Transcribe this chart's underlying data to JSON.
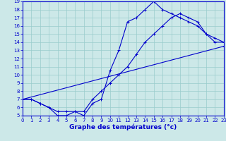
{
  "xlabel": "Graphe des températures (°c)",
  "bg_color": "#cce8e8",
  "grid_color": "#99cccc",
  "line_color": "#0000cc",
  "xlim": [
    0,
    23
  ],
  "ylim": [
    5,
    19
  ],
  "yticks": [
    5,
    6,
    7,
    8,
    9,
    10,
    11,
    12,
    13,
    14,
    15,
    16,
    17,
    18,
    19
  ],
  "xticks": [
    0,
    1,
    2,
    3,
    4,
    5,
    6,
    7,
    8,
    9,
    10,
    11,
    12,
    13,
    14,
    15,
    16,
    17,
    18,
    19,
    20,
    21,
    22,
    23
  ],
  "line1_x": [
    0,
    1,
    2,
    3,
    4,
    5,
    6,
    7,
    8,
    9,
    10,
    11,
    12,
    13,
    14,
    15,
    16,
    17,
    18,
    19,
    20,
    21,
    22,
    23
  ],
  "line1_y": [
    7,
    7,
    6.5,
    6,
    5,
    5,
    5.5,
    5,
    6.5,
    7,
    10.5,
    13,
    16.5,
    17,
    18,
    19,
    18,
    17.5,
    17,
    16.5,
    16,
    15,
    14,
    14
  ],
  "line2_x": [
    0,
    1,
    2,
    3,
    4,
    5,
    6,
    7,
    8,
    9,
    10,
    11,
    12,
    13,
    14,
    15,
    16,
    17,
    18,
    19,
    20,
    21,
    22,
    23
  ],
  "line2_y": [
    7,
    7,
    6.5,
    6,
    5.5,
    5.5,
    5.5,
    5.5,
    7,
    8,
    9,
    10,
    11,
    12.5,
    14,
    15,
    16,
    17,
    17.5,
    17,
    16.5,
    15,
    14.5,
    14
  ],
  "line3_x": [
    0,
    23
  ],
  "line3_y": [
    7,
    13.5
  ]
}
